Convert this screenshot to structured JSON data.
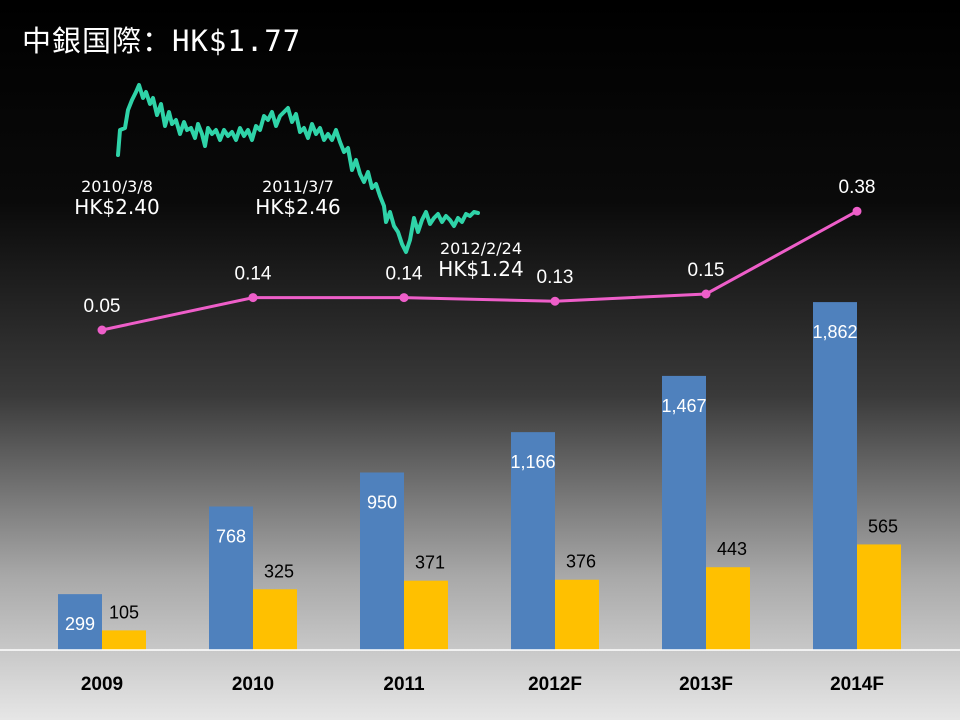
{
  "title": "中銀国際：HK$1.77",
  "price_annotations": [
    {
      "date": "2010/3/8",
      "price": "HK$2.40"
    },
    {
      "date": "2011/3/7",
      "price": "HK$2.46"
    },
    {
      "date": "2012/2/24",
      "price": "HK$1.24"
    }
  ],
  "colors": {
    "bar_series_1": "#4f81bd",
    "bar_series_2": "#ffc000",
    "line_series": "#ee5ec9",
    "price_trace": "#2fd3a8",
    "label_on_dark": "#ffffff",
    "label_on_light": "#000000"
  },
  "chart_data": {
    "type": "bar",
    "categories": [
      "2009",
      "2010",
      "2011",
      "2012F",
      "2013F",
      "2014F"
    ],
    "series": [
      {
        "type": "bar",
        "values": [
          299,
          768,
          950,
          1166,
          1467,
          1862
        ],
        "value_labels": [
          "299",
          "768",
          "950",
          "1,166",
          "1,467",
          "1,862"
        ]
      },
      {
        "type": "bar",
        "values": [
          105,
          325,
          371,
          376,
          443,
          565
        ],
        "value_labels": [
          "105",
          "325",
          "371",
          "376",
          "443",
          "565"
        ]
      },
      {
        "type": "line",
        "values": [
          0.05,
          0.14,
          0.14,
          0.13,
          0.15,
          0.38
        ],
        "value_labels": [
          "0.05",
          "0.14",
          "0.14",
          "0.13",
          "0.15",
          "0.38"
        ]
      }
    ],
    "bar_axis_range": [
      0,
      1900
    ],
    "line_axis_range": [
      -0.5,
      0.5
    ],
    "grid": false,
    "legend": "none"
  }
}
